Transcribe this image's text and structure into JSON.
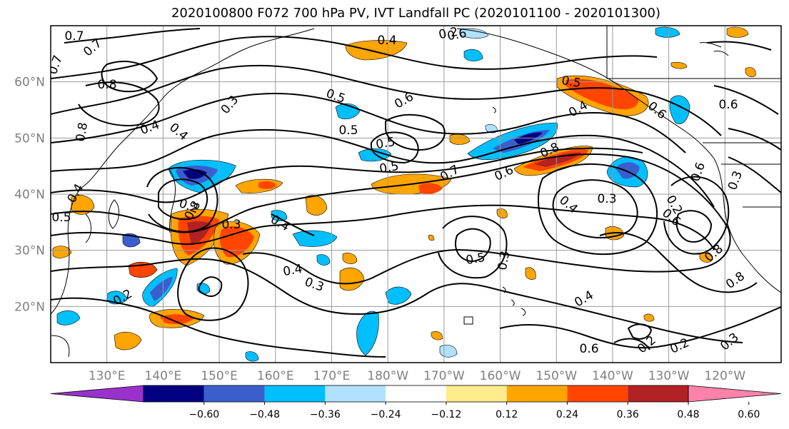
{
  "title": "2020100800 F072 700 hPa PV, IVT Landfall PC (2020101100 - 2020101300)",
  "map": {
    "projection": "plate-carree",
    "lon_range_deg_east": [
      120,
      250
    ],
    "lat_range_deg": [
      10,
      70
    ],
    "lat_labels": [
      "20°N",
      "30°N",
      "40°N",
      "50°N",
      "60°N"
    ],
    "lon_labels": [
      "130°E",
      "140°E",
      "150°E",
      "160°E",
      "170°E",
      "180°W",
      "170°W",
      "160°W",
      "150°W",
      "140°W",
      "130°W",
      "120°W"
    ],
    "contour_color": "#000000",
    "gridline_color": "#9a9a9a",
    "coastline_color": "#000000",
    "contour_labels": [
      "0.7",
      "0.7",
      "0.8",
      "0.8",
      "0.5",
      "0.6",
      "0.3",
      "0.4",
      "0.4",
      "0.5",
      "0.5",
      "0.6",
      "0.5",
      "0.4",
      "0.7",
      "0.8",
      "0.5",
      "0.6",
      "0.4",
      "0.6",
      "0.8",
      "0.6",
      "0.6",
      "0.3",
      "0.4",
      "0.3",
      "0.4",
      "0.2",
      "0.4",
      "0.3",
      "0.5",
      "0.3",
      "0.4",
      "0.6",
      "0.8",
      "0.2",
      "0.2",
      "0.3",
      "0.2",
      "0.3",
      "0.6",
      "0.2",
      "0.2",
      "0.4",
      "0.7",
      "0.5",
      "0.8"
    ]
  },
  "colorbar": {
    "ticks": [
      "−0.60",
      "−0.48",
      "−0.36",
      "−0.24",
      "−0.12",
      "0.12",
      "0.24",
      "0.36",
      "0.48",
      "0.60"
    ],
    "colors": [
      "#9932cc",
      "#000080",
      "#3a5fcd",
      "#00bfff",
      "#b0e2ff",
      "#ffffff",
      "#ffec8b",
      "#ffa500",
      "#ff4500",
      "#b22222",
      "#ff82ab"
    ]
  },
  "shading_colors": {
    "neg_strong": "#3a5fcd",
    "neg_mid": "#00bfff",
    "neg_weak": "#b0e2ff",
    "neg_dark": "#000080",
    "pos_weak": "#ffec8b",
    "pos_mid": "#ffa500",
    "pos_strong": "#ff4500",
    "pos_dark": "#b22222"
  }
}
